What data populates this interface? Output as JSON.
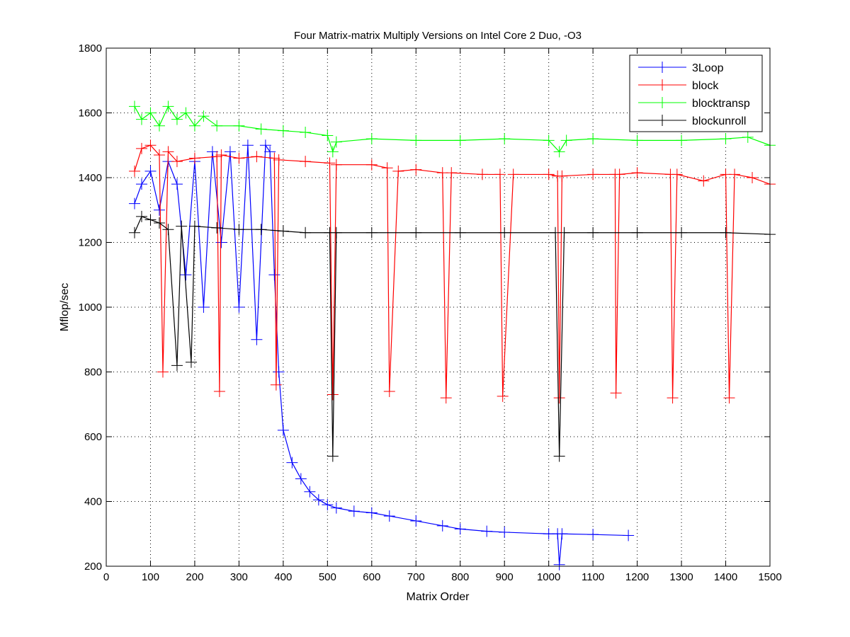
{
  "chart_data": {
    "type": "line",
    "title": "Four Matrix-matrix Multiply Versions on Intel Core 2 Duo, -O3",
    "xlabel": "Matrix Order",
    "ylabel": "Mflop/sec",
    "xlim": [
      0,
      1500
    ],
    "ylim": [
      200,
      1800
    ],
    "xticks": [
      0,
      100,
      200,
      300,
      400,
      500,
      600,
      700,
      800,
      900,
      1000,
      1100,
      1200,
      1300,
      1400,
      1500
    ],
    "yticks": [
      200,
      400,
      600,
      800,
      1000,
      1200,
      1400,
      1600,
      1800
    ],
    "grid": true,
    "legend_placement": "top-right",
    "marker": "+",
    "series": [
      {
        "name": "3Loop",
        "color": "#0000ff",
        "points": [
          [
            64,
            1320
          ],
          [
            80,
            1380
          ],
          [
            100,
            1420
          ],
          [
            120,
            1300
          ],
          [
            140,
            1450
          ],
          [
            160,
            1380
          ],
          [
            180,
            1100
          ],
          [
            200,
            1450
          ],
          [
            220,
            1000
          ],
          [
            240,
            1480
          ],
          [
            260,
            1200
          ],
          [
            280,
            1480
          ],
          [
            300,
            1000
          ],
          [
            320,
            1500
          ],
          [
            340,
            900
          ],
          [
            360,
            1500
          ],
          [
            370,
            1480
          ],
          [
            380,
            1100
          ],
          [
            390,
            800
          ],
          [
            400,
            620
          ],
          [
            420,
            520
          ],
          [
            440,
            470
          ],
          [
            460,
            430
          ],
          [
            480,
            405
          ],
          [
            500,
            390
          ],
          [
            520,
            380
          ],
          [
            560,
            370
          ],
          [
            600,
            365
          ],
          [
            640,
            355
          ],
          [
            700,
            340
          ],
          [
            760,
            325
          ],
          [
            800,
            315
          ],
          [
            860,
            308
          ],
          [
            900,
            305
          ],
          [
            1000,
            300
          ],
          [
            1020,
            300
          ],
          [
            1024,
            205
          ],
          [
            1030,
            300
          ],
          [
            1100,
            298
          ],
          [
            1180,
            295
          ]
        ]
      },
      {
        "name": "block",
        "color": "#ff0000",
        "points": [
          [
            64,
            1420
          ],
          [
            80,
            1490
          ],
          [
            100,
            1500
          ],
          [
            120,
            1470
          ],
          [
            128,
            800
          ],
          [
            140,
            1480
          ],
          [
            160,
            1450
          ],
          [
            200,
            1460
          ],
          [
            250,
            1465
          ],
          [
            256,
            740
          ],
          [
            260,
            1470
          ],
          [
            300,
            1460
          ],
          [
            340,
            1465
          ],
          [
            380,
            1460
          ],
          [
            384,
            760
          ],
          [
            390,
            1455
          ],
          [
            450,
            1450
          ],
          [
            505,
            1445
          ],
          [
            512,
            730
          ],
          [
            520,
            1440
          ],
          [
            600,
            1440
          ],
          [
            635,
            1430
          ],
          [
            640,
            740
          ],
          [
            660,
            1420
          ],
          [
            700,
            1425
          ],
          [
            760,
            1415
          ],
          [
            768,
            720
          ],
          [
            780,
            1415
          ],
          [
            850,
            1410
          ],
          [
            890,
            1410
          ],
          [
            896,
            725
          ],
          [
            920,
            1410
          ],
          [
            1000,
            1410
          ],
          [
            1020,
            1405
          ],
          [
            1024,
            720
          ],
          [
            1030,
            1405
          ],
          [
            1100,
            1410
          ],
          [
            1150,
            1410
          ],
          [
            1152,
            735
          ],
          [
            1160,
            1410
          ],
          [
            1200,
            1415
          ],
          [
            1275,
            1410
          ],
          [
            1280,
            720
          ],
          [
            1290,
            1410
          ],
          [
            1350,
            1390
          ],
          [
            1400,
            1410
          ],
          [
            1408,
            720
          ],
          [
            1420,
            1410
          ],
          [
            1460,
            1400
          ],
          [
            1500,
            1380
          ]
        ]
      },
      {
        "name": "blocktransp",
        "color": "#00ff00",
        "points": [
          [
            64,
            1620
          ],
          [
            80,
            1580
          ],
          [
            100,
            1600
          ],
          [
            120,
            1560
          ],
          [
            140,
            1620
          ],
          [
            160,
            1580
          ],
          [
            180,
            1600
          ],
          [
            200,
            1560
          ],
          [
            220,
            1590
          ],
          [
            250,
            1560
          ],
          [
            300,
            1560
          ],
          [
            350,
            1550
          ],
          [
            400,
            1545
          ],
          [
            450,
            1540
          ],
          [
            500,
            1530
          ],
          [
            512,
            1480
          ],
          [
            520,
            1510
          ],
          [
            600,
            1520
          ],
          [
            700,
            1515
          ],
          [
            800,
            1515
          ],
          [
            900,
            1520
          ],
          [
            1000,
            1515
          ],
          [
            1024,
            1480
          ],
          [
            1040,
            1515
          ],
          [
            1100,
            1520
          ],
          [
            1200,
            1515
          ],
          [
            1300,
            1515
          ],
          [
            1400,
            1520
          ],
          [
            1450,
            1525
          ],
          [
            1500,
            1500
          ]
        ]
      },
      {
        "name": "blockunroll",
        "color": "#000000",
        "points": [
          [
            64,
            1230
          ],
          [
            80,
            1280
          ],
          [
            100,
            1270
          ],
          [
            120,
            1260
          ],
          [
            140,
            1240
          ],
          [
            160,
            820
          ],
          [
            170,
            1250
          ],
          [
            192,
            830
          ],
          [
            200,
            1250
          ],
          [
            250,
            1245
          ],
          [
            300,
            1240
          ],
          [
            350,
            1240
          ],
          [
            400,
            1235
          ],
          [
            450,
            1230
          ],
          [
            505,
            1230
          ],
          [
            512,
            540
          ],
          [
            520,
            1230
          ],
          [
            600,
            1230
          ],
          [
            700,
            1230
          ],
          [
            800,
            1230
          ],
          [
            900,
            1230
          ],
          [
            1015,
            1230
          ],
          [
            1024,
            540
          ],
          [
            1035,
            1230
          ],
          [
            1100,
            1230
          ],
          [
            1200,
            1230
          ],
          [
            1300,
            1230
          ],
          [
            1400,
            1230
          ],
          [
            1500,
            1225
          ]
        ]
      }
    ]
  }
}
